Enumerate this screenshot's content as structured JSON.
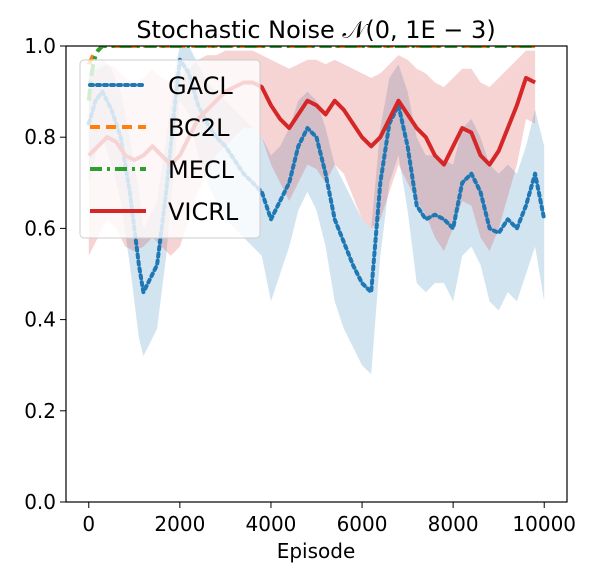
{
  "chart_data": {
    "type": "line",
    "title": "Stochastic Noise 𝒩(0, 1E − 3)",
    "xlabel": "Episode",
    "ylabel": "",
    "xlim": [
      -500,
      10500
    ],
    "ylim": [
      0,
      1.0
    ],
    "xticks": [
      0,
      2000,
      4000,
      6000,
      8000,
      10000
    ],
    "xtick_labels": [
      "0",
      "2000",
      "4000",
      "6000",
      "8000",
      "10000"
    ],
    "yticks": [
      0.0,
      0.2,
      0.4,
      0.6,
      0.8,
      1.0
    ],
    "ytick_labels": [
      "0.0",
      "0.2",
      "0.4",
      "0.6",
      "0.8",
      "1.0"
    ],
    "legend_position": "top-left",
    "series": [
      {
        "name": "GACL",
        "color": "#1f77b4",
        "style": "dotted",
        "x": [
          0,
          150,
          300,
          500,
          700,
          900,
          1100,
          1200,
          1300,
          1500,
          1700,
          1900,
          2000,
          2200,
          2400,
          2600,
          2800,
          3000,
          3200,
          3400,
          3600,
          3800,
          4000,
          4200,
          4400,
          4600,
          4800,
          5000,
          5200,
          5400,
          5600,
          5800,
          6000,
          6200,
          6400,
          6600,
          6800,
          7000,
          7200,
          7400,
          7600,
          7800,
          8000,
          8200,
          8400,
          8600,
          8800,
          9000,
          9200,
          9400,
          9600,
          9800,
          10000
        ],
        "values": [
          0.83,
          0.88,
          0.9,
          0.86,
          0.8,
          0.68,
          0.52,
          0.46,
          0.48,
          0.52,
          0.68,
          0.88,
          0.97,
          0.94,
          0.87,
          0.83,
          0.8,
          0.78,
          0.75,
          0.72,
          0.7,
          0.68,
          0.62,
          0.66,
          0.7,
          0.78,
          0.82,
          0.8,
          0.72,
          0.62,
          0.57,
          0.52,
          0.48,
          0.46,
          0.7,
          0.83,
          0.87,
          0.78,
          0.65,
          0.62,
          0.63,
          0.62,
          0.6,
          0.7,
          0.72,
          0.68,
          0.6,
          0.59,
          0.62,
          0.6,
          0.65,
          0.72,
          0.62
        ],
        "band_upper": [
          0.93,
          0.96,
          0.97,
          0.95,
          0.9,
          0.8,
          0.68,
          0.6,
          0.62,
          0.66,
          0.8,
          0.95,
          1.0,
          1.0,
          0.96,
          0.92,
          0.9,
          0.88,
          0.86,
          0.84,
          0.82,
          0.8,
          0.76,
          0.78,
          0.82,
          0.88,
          0.9,
          0.88,
          0.82,
          0.74,
          0.7,
          0.66,
          0.62,
          0.6,
          0.82,
          0.93,
          0.96,
          0.9,
          0.8,
          0.76,
          0.76,
          0.75,
          0.74,
          0.82,
          0.84,
          0.8,
          0.74,
          0.72,
          0.74,
          0.72,
          0.78,
          0.86,
          0.78
        ],
        "band_lower": [
          0.7,
          0.76,
          0.8,
          0.74,
          0.66,
          0.52,
          0.36,
          0.32,
          0.34,
          0.38,
          0.54,
          0.76,
          0.88,
          0.85,
          0.76,
          0.7,
          0.66,
          0.62,
          0.6,
          0.58,
          0.56,
          0.54,
          0.44,
          0.5,
          0.56,
          0.64,
          0.68,
          0.64,
          0.56,
          0.44,
          0.38,
          0.34,
          0.3,
          0.28,
          0.54,
          0.7,
          0.76,
          0.64,
          0.48,
          0.46,
          0.48,
          0.48,
          0.44,
          0.54,
          0.56,
          0.52,
          0.44,
          0.42,
          0.46,
          0.44,
          0.5,
          0.56,
          0.44
        ]
      },
      {
        "name": "BC2L",
        "color": "#ff7f0e",
        "style": "dashed",
        "x": [
          0,
          100,
          200,
          300,
          400,
          600,
          1000,
          2000,
          3000,
          4000,
          5000,
          6000,
          7000,
          8000,
          9000,
          9800
        ],
        "values": [
          0.96,
          0.98,
          0.99,
          1.0,
          1.0,
          1.0,
          1.0,
          1.0,
          1.0,
          1.0,
          1.0,
          1.0,
          1.0,
          1.0,
          1.0,
          1.0
        ]
      },
      {
        "name": "MECL",
        "color": "#2ca02c",
        "style": "dashdot",
        "x": [
          0,
          50,
          100,
          150,
          200,
          300,
          500,
          1000,
          2000,
          3000,
          4000,
          5000,
          6000,
          7000,
          8000,
          9000,
          9800
        ],
        "values": [
          0.88,
          0.93,
          0.96,
          0.98,
          0.99,
          1.0,
          1.0,
          1.0,
          1.0,
          1.0,
          1.0,
          1.0,
          1.0,
          1.0,
          1.0,
          1.0,
          1.0
        ]
      },
      {
        "name": "VICRL",
        "color": "#d62728",
        "style": "solid",
        "x": [
          0,
          200,
          400,
          600,
          800,
          1000,
          1200,
          1400,
          1600,
          1800,
          2000,
          2200,
          2400,
          2600,
          2800,
          3000,
          3200,
          3400,
          3600,
          3800,
          4000,
          4200,
          4400,
          4600,
          4800,
          5000,
          5200,
          5400,
          5600,
          5800,
          6000,
          6200,
          6400,
          6600,
          6800,
          7000,
          7200,
          7400,
          7600,
          7800,
          8000,
          8200,
          8400,
          8600,
          8800,
          9000,
          9200,
          9400,
          9600,
          9800
        ],
        "values": [
          0.76,
          0.78,
          0.8,
          0.79,
          0.76,
          0.75,
          0.76,
          0.78,
          0.76,
          0.74,
          0.76,
          0.8,
          0.84,
          0.86,
          0.88,
          0.9,
          0.91,
          0.92,
          0.92,
          0.91,
          0.87,
          0.84,
          0.82,
          0.85,
          0.88,
          0.87,
          0.85,
          0.88,
          0.86,
          0.83,
          0.8,
          0.78,
          0.8,
          0.84,
          0.88,
          0.85,
          0.82,
          0.8,
          0.76,
          0.74,
          0.78,
          0.82,
          0.81,
          0.76,
          0.74,
          0.77,
          0.82,
          0.87,
          0.93,
          0.92
        ],
        "band_upper": [
          0.94,
          0.95,
          0.96,
          0.95,
          0.93,
          0.92,
          0.93,
          0.95,
          0.93,
          0.92,
          0.93,
          0.95,
          0.97,
          0.98,
          0.98,
          0.99,
          0.99,
          0.99,
          0.99,
          0.98,
          0.97,
          0.96,
          0.95,
          0.96,
          0.97,
          0.97,
          0.96,
          0.97,
          0.96,
          0.95,
          0.94,
          0.93,
          0.94,
          0.96,
          0.98,
          0.97,
          0.95,
          0.94,
          0.92,
          0.91,
          0.93,
          0.95,
          0.95,
          0.92,
          0.91,
          0.93,
          0.95,
          0.97,
          0.99,
          0.99
        ],
        "band_lower": [
          0.54,
          0.58,
          0.62,
          0.6,
          0.56,
          0.55,
          0.56,
          0.58,
          0.56,
          0.54,
          0.56,
          0.62,
          0.68,
          0.72,
          0.76,
          0.78,
          0.8,
          0.82,
          0.82,
          0.8,
          0.74,
          0.7,
          0.66,
          0.7,
          0.74,
          0.73,
          0.7,
          0.74,
          0.72,
          0.67,
          0.62,
          0.6,
          0.62,
          0.68,
          0.74,
          0.7,
          0.66,
          0.63,
          0.58,
          0.55,
          0.6,
          0.66,
          0.65,
          0.58,
          0.55,
          0.6,
          0.67,
          0.74,
          0.84,
          0.83
        ]
      }
    ]
  }
}
